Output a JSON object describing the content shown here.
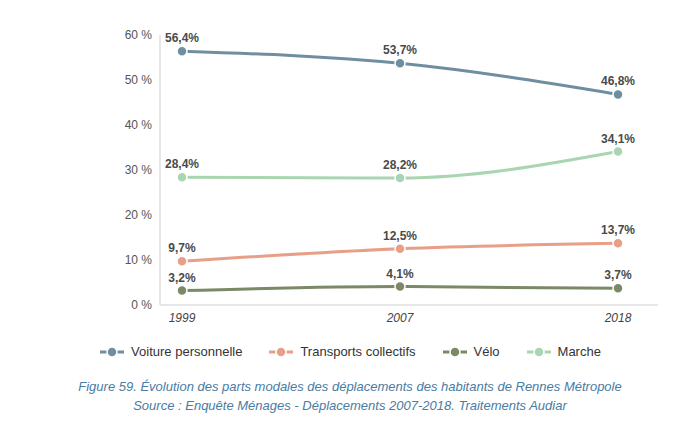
{
  "chart_data": {
    "type": "line",
    "title": "Figure 59. Évolution des parts modales des déplacements des habitants de Rennes Métropole",
    "subtitle": "Source : Enquête Ménages - Déplacements 2007-2018. Traitements Audiar",
    "categories": [
      "1999",
      "2007",
      "2018"
    ],
    "series": [
      {
        "name": "Voiture personnelle",
        "color": "#6f8fa0",
        "values": [
          56.4,
          53.7,
          46.8
        ],
        "value_labels": [
          "56,4%",
          "53,7%",
          "46,8%"
        ]
      },
      {
        "name": "Transports collectifs",
        "color": "#e79f88",
        "values": [
          9.7,
          12.5,
          13.7
        ],
        "value_labels": [
          "9,7%",
          "12,5%",
          "13,7%"
        ]
      },
      {
        "name": "Vélo",
        "color": "#7b8966",
        "values": [
          3.2,
          4.1,
          3.7
        ],
        "value_labels": [
          "3,2%",
          "4,1%",
          "3,7%"
        ]
      },
      {
        "name": "Marche",
        "color": "#a9d6b1",
        "values": [
          28.4,
          28.2,
          34.1
        ],
        "value_labels": [
          "28,4%",
          "28,2%",
          "34,1%"
        ]
      }
    ],
    "ylim": [
      0,
      60
    ],
    "yticks": [
      {
        "value": 0,
        "label": "0 %"
      },
      {
        "value": 10,
        "label": "10 %"
      },
      {
        "value": 20,
        "label": "20 %"
      },
      {
        "value": 30,
        "label": "30 %"
      },
      {
        "value": 40,
        "label": "40 %"
      },
      {
        "value": 50,
        "label": "50 %"
      },
      {
        "value": 60,
        "label": "60 %"
      }
    ],
    "grid": false,
    "legend": "bottom",
    "data_labels": true,
    "marker": "circle",
    "line_style": "solid"
  }
}
